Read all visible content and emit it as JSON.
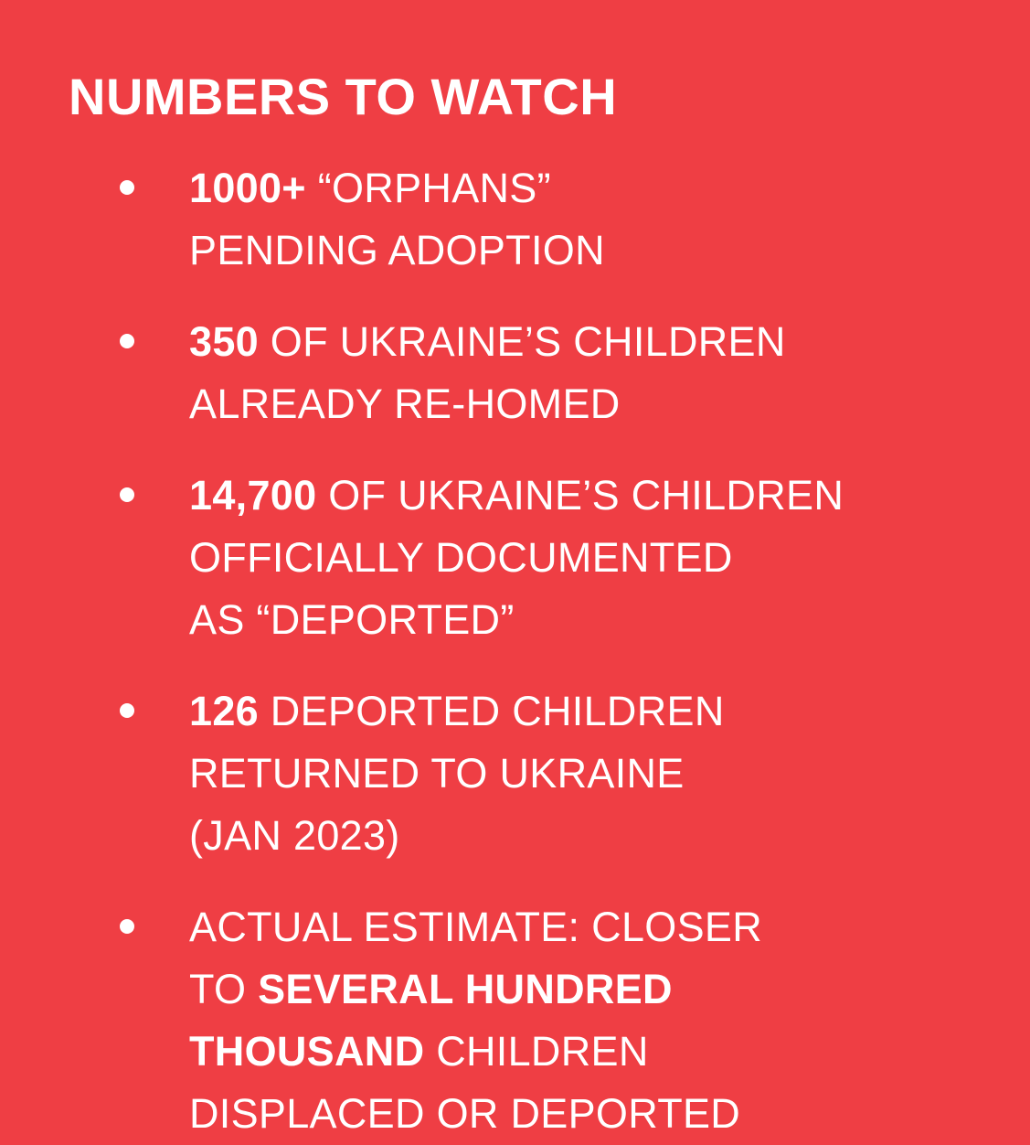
{
  "title": "NUMBERS TO WATCH",
  "items": [
    {
      "lines": [
        {
          "bold": "1000+",
          "rest": " “ORPHANS”"
        },
        {
          "text": "PENDING ADOPTION"
        }
      ]
    },
    {
      "lines": [
        {
          "bold": "350",
          "rest": " OF UKRAINE’S CHILDREN"
        },
        {
          "text": "ALREADY RE-HOMED"
        }
      ]
    },
    {
      "lines": [
        {
          "bold": "14,700",
          "rest": " OF UKRAINE’S CHILDREN"
        },
        {
          "text": "OFFICIALLY DOCUMENTED"
        },
        {
          "text": "AS “DEPORTED”"
        }
      ]
    },
    {
      "lines": [
        {
          "bold": "126",
          "rest": " DEPORTED CHILDREN"
        },
        {
          "text": "RETURNED TO UKRAINE"
        },
        {
          "text": "(JAN 2023)"
        }
      ]
    },
    {
      "lines": [
        {
          "text": "ACTUAL ESTIMATE: CLOSER"
        },
        {
          "pre": "TO ",
          "bold": "SEVERAL HUNDRED"
        },
        {
          "bold": "THOUSAND",
          "rest": " CHILDREN"
        },
        {
          "text": "DISPLACED OR DEPORTED"
        }
      ]
    }
  ]
}
